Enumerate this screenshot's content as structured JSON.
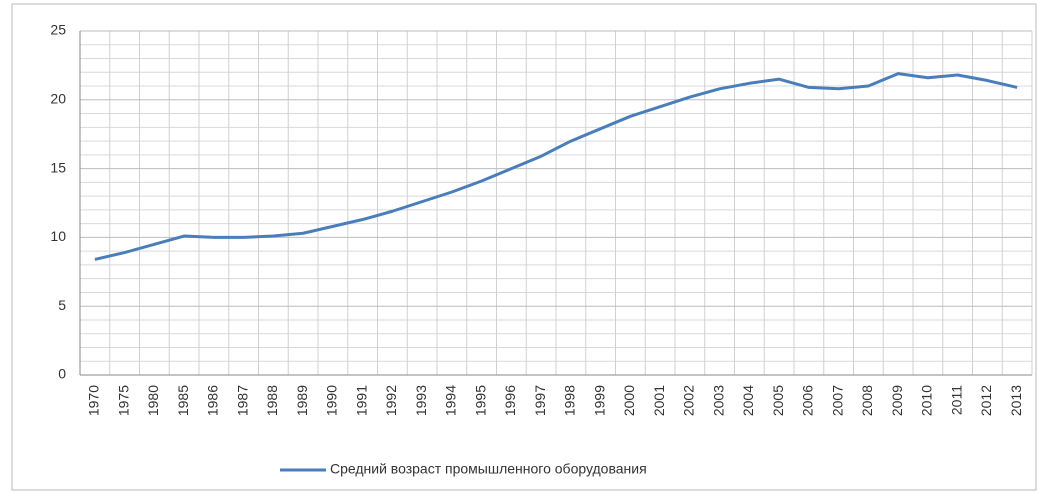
{
  "chart_data": {
    "type": "line",
    "categories": [
      "1970",
      "1975",
      "1980",
      "1985",
      "1986",
      "1987",
      "1988",
      "1989",
      "1990",
      "1991",
      "1992",
      "1993",
      "1994",
      "1995",
      "1996",
      "1997",
      "1998",
      "1999",
      "2000",
      "2001",
      "2002",
      "2003",
      "2004",
      "2005",
      "2006",
      "2007",
      "2008",
      "2009",
      "2010",
      "2011",
      "2012",
      "2013"
    ],
    "series": [
      {
        "name": "Средний возраст промышленного оборудования",
        "color": "#4a7ebb",
        "values": [
          8.4,
          8.9,
          9.5,
          10.1,
          10.0,
          10.0,
          10.1,
          10.3,
          10.8,
          11.3,
          11.9,
          12.6,
          13.3,
          14.1,
          15.0,
          15.9,
          17.0,
          17.9,
          18.8,
          19.5,
          20.2,
          20.8,
          21.2,
          21.5,
          20.9,
          20.8,
          21.0,
          21.9,
          21.6,
          21.8,
          21.4,
          20.9
        ]
      }
    ],
    "ylim": [
      0,
      25
    ],
    "yticks": [
      0,
      5,
      10,
      15,
      20,
      25
    ],
    "minor_yticks": [
      1,
      2,
      3,
      4,
      6,
      7,
      8,
      9,
      11,
      12,
      13,
      14,
      16,
      17,
      18,
      19,
      21,
      22,
      23,
      24
    ],
    "grid": true,
    "legend": "bottom"
  }
}
